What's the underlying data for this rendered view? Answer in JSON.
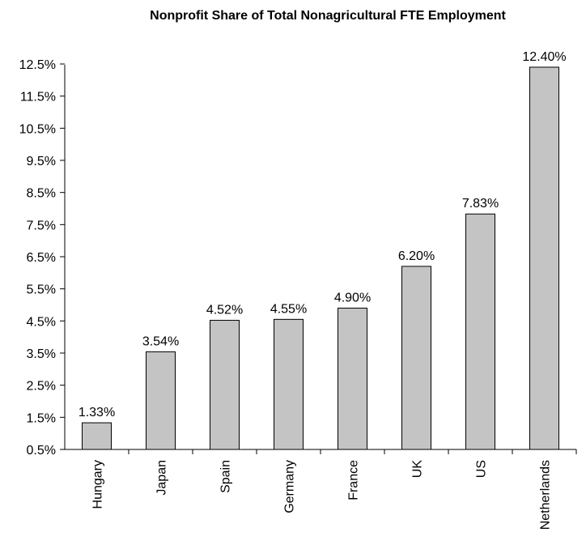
{
  "chart_data": {
    "type": "bar",
    "title": "Nonprofit Share of Total Nonagricultural FTE Employment",
    "xlabel": "",
    "ylabel": "",
    "categories": [
      "Hungary",
      "Japan",
      "Spain",
      "Germany",
      "France",
      "UK",
      "US",
      "Netherlands"
    ],
    "values": [
      1.33,
      3.54,
      4.52,
      4.55,
      4.9,
      6.2,
      7.83,
      12.4
    ],
    "value_labels": [
      "1.33%",
      "3.54%",
      "4.52%",
      "4.55%",
      "4.90%",
      "6.20%",
      "7.83%",
      "12.40%"
    ],
    "ylim": [
      0.5,
      12.5
    ],
    "y_ticks": [
      0.5,
      1.5,
      2.5,
      3.5,
      4.5,
      5.5,
      6.5,
      7.5,
      8.5,
      9.5,
      10.5,
      11.5,
      12.5
    ],
    "y_tick_labels": [
      "0.5%",
      "1.5%",
      "2.5%",
      "3.5%",
      "4.5%",
      "5.5%",
      "6.5%",
      "7.5%",
      "8.5%",
      "9.5%",
      "10.5%",
      "11.5%",
      "12.5%"
    ],
    "grid": false,
    "legend": "none",
    "bar_color": "#c4c4c4",
    "bar_outline_color": "#000000"
  }
}
